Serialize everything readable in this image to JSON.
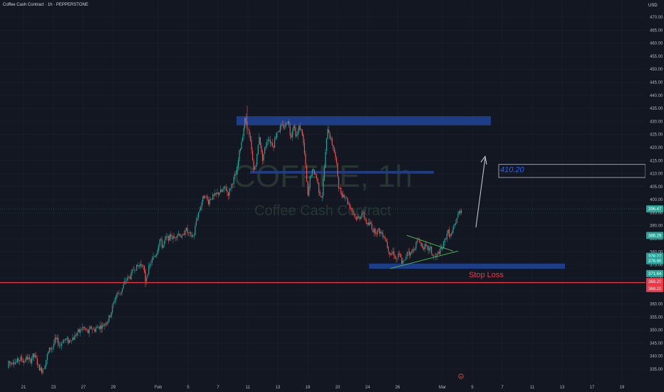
{
  "header": {
    "title": "Coffee Cash Contract · 1h · PEPPERSTONE",
    "currency": "USD"
  },
  "watermark": {
    "symbol": "COFFEE, 1h",
    "name": "Coffee Cash Contract"
  },
  "colors": {
    "background": "#131722",
    "up": "#26a69a",
    "down": "#ef5350",
    "zone": "#1e3f8c",
    "stop_line": "#f23645",
    "triangle": "#4caf50",
    "target": "#2962ff"
  },
  "chart_data": {
    "type": "candlestick",
    "ylim": [
      332,
      477
    ],
    "y_ticks": [
      335,
      340,
      345,
      350,
      355,
      360,
      365,
      370,
      375,
      380,
      385,
      390,
      395,
      400,
      405,
      410,
      415,
      420,
      425,
      430,
      435,
      440,
      445,
      450,
      455,
      460,
      465,
      470
    ],
    "x_ticks": [
      "21",
      "23",
      "27",
      "29",
      "Feb",
      "5",
      "7",
      "11",
      "13",
      "18",
      "20",
      "24",
      "26",
      "Mar",
      "5",
      "7",
      "11",
      "13",
      "17",
      "19"
    ],
    "price_path": [
      [
        0,
        335.5
      ],
      [
        8,
        336.5
      ],
      [
        12,
        338
      ],
      [
        15,
        337
      ],
      [
        18,
        338.5
      ],
      [
        22,
        337.5
      ],
      [
        26,
        338.5
      ],
      [
        30,
        339
      ],
      [
        33,
        338
      ],
      [
        38,
        339.5
      ],
      [
        42,
        338
      ],
      [
        46,
        340
      ],
      [
        50,
        339.5
      ],
      [
        54,
        336
      ],
      [
        58,
        334.5
      ],
      [
        62,
        336
      ],
      [
        66,
        340
      ],
      [
        70,
        343
      ],
      [
        74,
        343.5
      ],
      [
        77,
        346
      ],
      [
        80,
        346
      ],
      [
        84,
        344
      ],
      [
        88,
        346
      ],
      [
        92,
        346.5
      ],
      [
        96,
        345.5
      ],
      [
        100,
        347
      ],
      [
        104,
        347
      ],
      [
        108,
        349
      ],
      [
        112,
        349.5
      ],
      [
        116,
        351
      ],
      [
        120,
        350
      ],
      [
        124,
        349
      ],
      [
        128,
        351
      ],
      [
        132,
        350
      ],
      [
        136,
        351
      ],
      [
        140,
        351.5
      ],
      [
        144,
        351.5
      ],
      [
        148,
        353
      ],
      [
        152,
        354
      ],
      [
        156,
        357
      ],
      [
        160,
        361
      ],
      [
        164,
        364
      ],
      [
        168,
        364
      ],
      [
        172,
        366
      ],
      [
        176,
        369
      ],
      [
        180,
        370
      ],
      [
        184,
        371
      ],
      [
        188,
        374
      ],
      [
        192,
        374
      ],
      [
        196,
        375
      ],
      [
        200,
        375.5
      ],
      [
        204,
        369
      ],
      [
        208,
        373
      ],
      [
        212,
        376
      ],
      [
        216,
        378
      ],
      [
        220,
        380
      ],
      [
        224,
        385
      ],
      [
        228,
        382
      ],
      [
        232,
        385
      ],
      [
        236,
        385
      ],
      [
        240,
        386
      ],
      [
        244,
        385
      ],
      [
        248,
        387
      ],
      [
        252,
        387
      ],
      [
        256,
        385
      ],
      [
        260,
        389
      ],
      [
        264,
        387
      ],
      [
        268,
        386
      ],
      [
        272,
        386
      ],
      [
        276,
        393
      ],
      [
        280,
        396
      ],
      [
        284,
        400
      ],
      [
        288,
        402
      ],
      [
        292,
        399
      ],
      [
        296,
        401
      ],
      [
        300,
        401
      ],
      [
        304,
        402
      ],
      [
        308,
        403
      ],
      [
        312,
        403
      ],
      [
        316,
        405
      ],
      [
        320,
        402
      ],
      [
        324,
        405
      ],
      [
        328,
        408
      ],
      [
        332,
        410
      ],
      [
        336,
        418
      ],
      [
        340,
        424
      ],
      [
        344,
        431
      ],
      [
        348,
        427
      ],
      [
        352,
        421
      ],
      [
        356,
        411
      ],
      [
        360,
        415
      ],
      [
        364,
        425
      ],
      [
        368,
        415
      ],
      [
        372,
        420
      ],
      [
        376,
        424
      ],
      [
        380,
        422
      ],
      [
        384,
        421
      ],
      [
        388,
        426
      ],
      [
        392,
        427
      ],
      [
        396,
        428
      ],
      [
        400,
        428
      ],
      [
        404,
        431
      ],
      [
        408,
        424
      ],
      [
        412,
        429
      ],
      [
        416,
        424
      ],
      [
        420,
        428
      ],
      [
        424,
        426
      ],
      [
        428,
        416
      ],
      [
        432,
        401
      ],
      [
        436,
        410
      ],
      [
        440,
        411
      ],
      [
        444,
        409
      ],
      [
        448,
        403
      ],
      [
        452,
        401
      ],
      [
        456,
        415
      ],
      [
        460,
        428
      ],
      [
        464,
        423
      ],
      [
        468,
        420
      ],
      [
        472,
        414
      ],
      [
        476,
        404
      ],
      [
        480,
        402
      ],
      [
        484,
        402
      ],
      [
        488,
        399
      ],
      [
        492,
        397
      ],
      [
        496,
        395
      ],
      [
        500,
        393
      ],
      [
        504,
        393
      ],
      [
        508,
        395
      ],
      [
        512,
        393
      ],
      [
        516,
        390
      ],
      [
        520,
        391
      ],
      [
        524,
        388
      ],
      [
        528,
        388
      ],
      [
        532,
        388
      ],
      [
        536,
        387
      ],
      [
        540,
        386
      ],
      [
        544,
        382
      ],
      [
        548,
        379
      ],
      [
        552,
        380
      ],
      [
        556,
        377
      ],
      [
        560,
        379
      ],
      [
        564,
        376
      ],
      [
        568,
        376
      ],
      [
        572,
        381
      ],
      [
        576,
        379
      ],
      [
        580,
        381
      ],
      [
        584,
        383
      ],
      [
        588,
        385
      ],
      [
        592,
        382
      ],
      [
        596,
        382
      ],
      [
        600,
        381
      ],
      [
        604,
        381
      ],
      [
        608,
        378
      ],
      [
        612,
        378
      ],
      [
        616,
        380
      ],
      [
        620,
        381
      ],
      [
        624,
        384
      ],
      [
        628,
        388
      ],
      [
        632,
        386
      ],
      [
        636,
        388
      ],
      [
        640,
        392
      ],
      [
        644,
        395
      ],
      [
        648,
        396.5
      ]
    ],
    "zones": [
      {
        "price_top": 432,
        "price_bottom": 428.5,
        "x_from": 332,
        "x_to": 689
      },
      {
        "price_top": 411,
        "price_bottom": 410,
        "x_from": 351,
        "x_to": 609
      },
      {
        "price_top": 375.5,
        "price_bottom": 373.5,
        "x_from": 518,
        "x_to": 793
      }
    ],
    "stop_loss": {
      "label": "Stop Loss",
      "price": 368.2
    },
    "target": {
      "label": "410.20",
      "price_top": 413.5,
      "price_bottom": 408.5,
      "x_from": 700
    },
    "current_price": 396.47,
    "price_labels": [
      {
        "text": "396.47",
        "price": 396.47,
        "color": "#26a69a"
      },
      {
        "text": "386.29",
        "price": 386.29,
        "color": "#26a69a"
      },
      {
        "text": "378.27",
        "price": 378.27,
        "color": "#26a69a"
      },
      {
        "text": "378.60",
        "price": 376.6,
        "color": "#26a69a"
      },
      {
        "text": "371.64",
        "price": 371.64,
        "color": "#26a69a"
      },
      {
        "text": "368.20",
        "price": 368.6,
        "color": "#f23645"
      },
      {
        "text": "368.20",
        "price": 365.9,
        "color": "#f23645"
      }
    ]
  }
}
